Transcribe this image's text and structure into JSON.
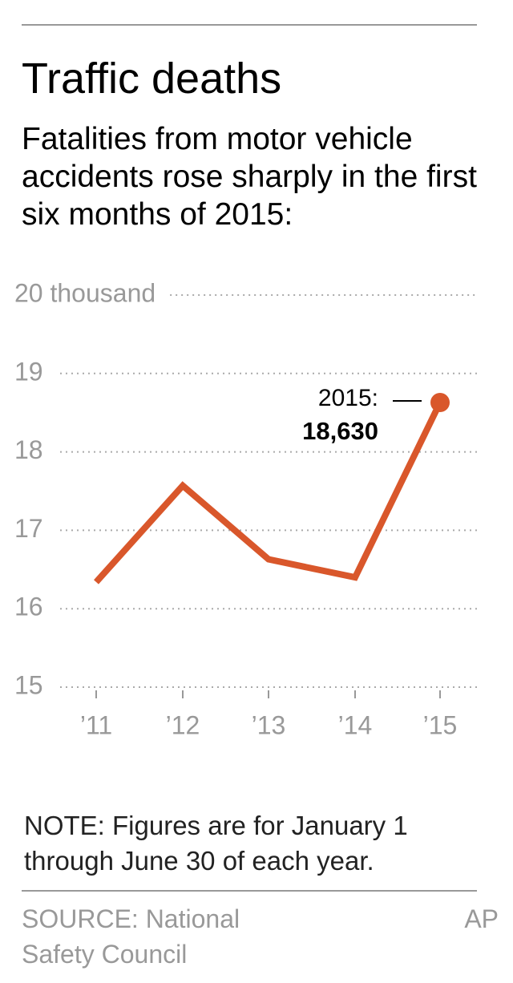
{
  "chart_data": {
    "type": "line",
    "title": "Traffic deaths",
    "subtitle": "Fatalities from motor vehicle accidents rose sharply in the first six months of 2015:",
    "categories": [
      "’11",
      "’12",
      "’13",
      "’14",
      "’15"
    ],
    "series": [
      {
        "name": "Fatalities",
        "color": "#d9572b",
        "values": [
          16.34,
          17.57,
          16.63,
          16.4,
          18.63
        ],
        "value_labels": [
          null,
          null,
          null,
          null,
          "18,630"
        ]
      }
    ],
    "annotation": "2015:",
    "ylim": [
      15,
      20
    ],
    "yticks": [
      15,
      16,
      17,
      18,
      19,
      {
        "value": 20,
        "label": "20 thousand"
      }
    ],
    "grid": true,
    "note": "NOTE: Figures are for January 1 through June 30 of each year.",
    "source": "SOURCE: National Safety Council",
    "credit": "AP"
  }
}
